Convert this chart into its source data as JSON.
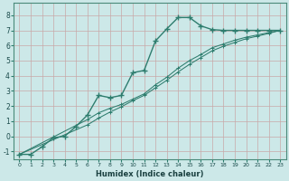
{
  "xlabel": "Humidex (Indice chaleur)",
  "bg_color": "#cce8e8",
  "grid_color": "#b8d8d8",
  "line_color": "#2e7d6e",
  "xlim": [
    -0.5,
    23.5
  ],
  "ylim": [
    -1.5,
    8.8
  ],
  "xticks": [
    0,
    1,
    2,
    3,
    4,
    5,
    6,
    7,
    8,
    9,
    10,
    11,
    12,
    13,
    14,
    15,
    16,
    17,
    18,
    19,
    20,
    21,
    22,
    23
  ],
  "yticks": [
    -1,
    0,
    1,
    2,
    3,
    4,
    5,
    6,
    7,
    8
  ],
  "curve1_x": [
    0,
    1,
    2,
    3,
    4,
    5,
    6,
    7,
    8,
    9,
    10,
    11,
    12,
    13,
    14,
    15,
    16,
    17,
    18,
    19,
    20,
    21,
    22,
    23
  ],
  "curve1_y": [
    -1.2,
    -1.2,
    -0.7,
    -0.1,
    0.0,
    0.65,
    1.4,
    2.7,
    2.55,
    2.7,
    4.2,
    4.35,
    6.3,
    7.1,
    7.85,
    7.85,
    7.3,
    7.05,
    7.0,
    7.0,
    7.0,
    7.0,
    7.0,
    7.0
  ],
  "curve2_x": [
    0,
    23
  ],
  "curve2_y": [
    -1.2,
    7.0
  ],
  "curve3_x": [
    0,
    23
  ],
  "curve3_y": [
    -1.2,
    7.0
  ],
  "line2_waypoints_x": [
    0,
    6,
    7,
    8,
    9,
    10,
    11,
    12,
    13,
    14,
    15,
    16,
    17,
    18,
    19,
    20,
    21,
    22,
    23
  ],
  "line2_waypoints_y": [
    -1.2,
    1.1,
    1.55,
    1.85,
    2.1,
    2.45,
    2.8,
    3.4,
    3.9,
    4.5,
    5.0,
    5.4,
    5.85,
    6.1,
    6.35,
    6.55,
    6.7,
    6.85,
    7.0
  ],
  "line3_waypoints_x": [
    0,
    6,
    7,
    8,
    9,
    10,
    11,
    12,
    13,
    14,
    15,
    16,
    17,
    18,
    19,
    20,
    21,
    22,
    23
  ],
  "line3_waypoints_y": [
    -1.2,
    0.75,
    1.2,
    1.6,
    1.95,
    2.35,
    2.7,
    3.2,
    3.7,
    4.25,
    4.75,
    5.2,
    5.65,
    5.95,
    6.2,
    6.45,
    6.62,
    6.8,
    7.0
  ]
}
